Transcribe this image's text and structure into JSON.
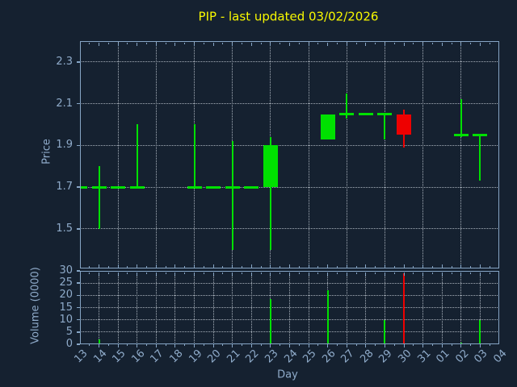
{
  "chart_data": {
    "type": "candlestick",
    "title": "PIP - last updated 03/02/2026",
    "xlabel": "Day",
    "x_categories": [
      "13",
      "14",
      "15",
      "16",
      "17",
      "18",
      "19",
      "20",
      "21",
      "22",
      "23",
      "24",
      "25",
      "26",
      "27",
      "28",
      "29",
      "30",
      "31",
      "01",
      "02",
      "03",
      "04"
    ],
    "price_panel": {
      "ylabel": "Price",
      "ylim": [
        1.31,
        2.4
      ],
      "yticks": [
        1.5,
        1.7,
        1.9,
        2.1,
        2.3
      ],
      "candles": [
        {
          "day": "13",
          "open": 1.7,
          "high": 1.7,
          "low": 1.7,
          "close": 1.7
        },
        {
          "day": "14",
          "open": 1.7,
          "high": 1.8,
          "low": 1.5,
          "close": 1.7
        },
        {
          "day": "15",
          "open": 1.7,
          "high": 1.7,
          "low": 1.7,
          "close": 1.7
        },
        {
          "day": "16",
          "open": 1.7,
          "high": 2.0,
          "low": 1.7,
          "close": 1.7
        },
        {
          "day": "19",
          "open": 1.7,
          "high": 2.0,
          "low": 1.7,
          "close": 1.7
        },
        {
          "day": "20",
          "open": 1.7,
          "high": 1.7,
          "low": 1.7,
          "close": 1.7
        },
        {
          "day": "21",
          "open": 1.7,
          "high": 1.92,
          "low": 1.4,
          "close": 1.7
        },
        {
          "day": "22",
          "open": 1.7,
          "high": 1.7,
          "low": 1.7,
          "close": 1.7
        },
        {
          "day": "23",
          "open": 1.7,
          "high": 1.94,
          "low": 1.4,
          "close": 1.9
        },
        {
          "day": "26",
          "open": 1.93,
          "high": 2.05,
          "low": 1.93,
          "close": 2.05
        },
        {
          "day": "27",
          "open": 2.05,
          "high": 2.15,
          "low": 2.03,
          "close": 2.05
        },
        {
          "day": "28",
          "open": 2.05,
          "high": 2.05,
          "low": 2.05,
          "close": 2.05
        },
        {
          "day": "29",
          "open": 2.05,
          "high": 2.05,
          "low": 1.93,
          "close": 2.05
        },
        {
          "day": "30",
          "open": 2.05,
          "high": 2.07,
          "low": 1.89,
          "close": 1.95
        },
        {
          "day": "02",
          "open": 1.95,
          "high": 2.12,
          "low": 1.94,
          "close": 1.95
        },
        {
          "day": "03",
          "open": 1.95,
          "high": 1.95,
          "low": 1.73,
          "close": 1.95
        }
      ]
    },
    "volume_panel": {
      "ylabel": "Volume (0000)",
      "ylim": [
        0,
        30
      ],
      "yticks": [
        0,
        5,
        10,
        15,
        20,
        25,
        30
      ],
      "bars": [
        {
          "day": "14",
          "value": 2,
          "direction": "up"
        },
        {
          "day": "23",
          "value": 18.5,
          "direction": "up"
        },
        {
          "day": "26",
          "value": 22,
          "direction": "up"
        },
        {
          "day": "29",
          "value": 10,
          "direction": "up"
        },
        {
          "day": "30",
          "value": 29,
          "direction": "down"
        },
        {
          "day": "02",
          "value": 0.7,
          "direction": "up"
        },
        {
          "day": "03",
          "value": 10,
          "direction": "up"
        }
      ]
    },
    "grid": {
      "style": "dotted",
      "price_vertical_grid_days": [
        "15",
        "17",
        "19",
        "21",
        "23",
        "25",
        "27",
        "29",
        "31",
        "02"
      ],
      "volume_vertical_grid": "every-day"
    },
    "colors": {
      "background": "#152130",
      "up": "#00e000",
      "down": "#ee0000",
      "frame": "#86a5c5",
      "tick_label": "#8fabca",
      "grid": "#a7b0ba",
      "title": "#f8f800"
    }
  }
}
